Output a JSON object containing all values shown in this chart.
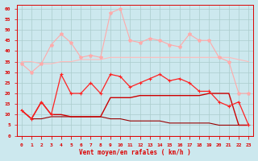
{
  "x": [
    0,
    1,
    2,
    3,
    4,
    5,
    6,
    7,
    8,
    9,
    10,
    11,
    12,
    13,
    14,
    15,
    16,
    17,
    18,
    19,
    20,
    21,
    22,
    23
  ],
  "line1": [
    34,
    30,
    34,
    43,
    48,
    44,
    37,
    38,
    37,
    58,
    60,
    45,
    44,
    46,
    45,
    43,
    42,
    48,
    45,
    45,
    37,
    35,
    20,
    20
  ],
  "line2": [
    35,
    35,
    34,
    34,
    35,
    35,
    36,
    36,
    36,
    37,
    37,
    37,
    37,
    37,
    37,
    37,
    37,
    37,
    37,
    37,
    37,
    37,
    36,
    35
  ],
  "line3": [
    12,
    8,
    16,
    10,
    29,
    20,
    20,
    25,
    20,
    29,
    28,
    23,
    25,
    27,
    29,
    26,
    27,
    25,
    21,
    21,
    16,
    14,
    16,
    5
  ],
  "line4": [
    12,
    8,
    16,
    10,
    10,
    9,
    9,
    9,
    9,
    18,
    18,
    18,
    19,
    19,
    19,
    19,
    19,
    19,
    19,
    20,
    20,
    20,
    5,
    5
  ],
  "line5": [
    12,
    8,
    8,
    9,
    9,
    9,
    9,
    9,
    9,
    8,
    8,
    7,
    7,
    7,
    7,
    6,
    6,
    6,
    6,
    6,
    5,
    5,
    5,
    5
  ],
  "color1": "#ffaaaa",
  "color2": "#ffbbbb",
  "color3": "#ff2222",
  "color4": "#cc0000",
  "color5": "#990000",
  "bg_color": "#cce8ee",
  "grid_color": "#aacccc",
  "xlabel": "Vent moyen/en rafales ( km/h )",
  "xlabel_color": "#dd0000",
  "tick_color": "#dd0000",
  "ylim": [
    0,
    62
  ],
  "yticks": [
    0,
    5,
    10,
    15,
    20,
    25,
    30,
    35,
    40,
    45,
    50,
    55,
    60
  ]
}
